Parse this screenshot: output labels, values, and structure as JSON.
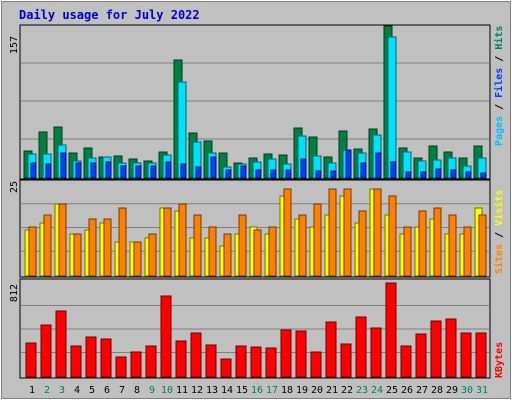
{
  "chart_data": [
    {
      "type": "bar",
      "title": "Daily usage for July 2022",
      "panel": "hits",
      "categories": [
        "1",
        "2",
        "3",
        "4",
        "5",
        "6",
        "7",
        "8",
        "9",
        "10",
        "11",
        "12",
        "13",
        "14",
        "15",
        "16",
        "17",
        "18",
        "19",
        "20",
        "21",
        "22",
        "23",
        "24",
        "25",
        "26",
        "27",
        "28",
        "29",
        "30",
        "31"
      ],
      "max_label": "157",
      "ylim": [
        0,
        157
      ],
      "grid": true,
      "legend_location": "right-side",
      "legend": [
        "Pages",
        "Files",
        "Hits"
      ],
      "series": [
        {
          "name": "Hits",
          "color": "#008040",
          "values": [
            28,
            48,
            53,
            26,
            31,
            22,
            23,
            20,
            18,
            27,
            122,
            46,
            38,
            26,
            15,
            21,
            25,
            24,
            52,
            42,
            22,
            49,
            30,
            51,
            157,
            31,
            21,
            33,
            27,
            21,
            33
          ]
        },
        {
          "name": "Files",
          "color": "#00e0ff",
          "values": [
            25,
            25,
            34,
            18,
            21,
            22,
            15,
            15,
            15,
            24,
            99,
            37,
            26,
            11,
            14,
            17,
            20,
            14,
            43,
            23,
            15,
            29,
            26,
            44,
            146,
            27,
            18,
            19,
            21,
            12,
            21
          ]
        },
        {
          "name": "Pages",
          "color": "#0040ff",
          "values": [
            16,
            14,
            26,
            15,
            16,
            17,
            12,
            12,
            12,
            17,
            14,
            11,
            22,
            8,
            12,
            8,
            8,
            8,
            20,
            7,
            7,
            29,
            16,
            26,
            17,
            6,
            6,
            9,
            8,
            6,
            5
          ]
        }
      ]
    },
    {
      "type": "bar",
      "panel": "visits",
      "categories": [
        "1",
        "2",
        "3",
        "4",
        "5",
        "6",
        "7",
        "8",
        "9",
        "10",
        "11",
        "12",
        "13",
        "14",
        "15",
        "16",
        "17",
        "18",
        "19",
        "20",
        "21",
        "22",
        "23",
        "24",
        "25",
        "26",
        "27",
        "28",
        "29",
        "30",
        "31"
      ],
      "max_label": "25",
      "ylim": [
        0,
        25
      ],
      "grid": true,
      "legend": [
        "Sites",
        "Visits"
      ],
      "series": [
        {
          "name": "Visits",
          "color": "#ff8000",
          "values": [
            13,
            16,
            19,
            11,
            15,
            15,
            18,
            9,
            11,
            18,
            19,
            16,
            13,
            11,
            16,
            12,
            13,
            23,
            16,
            19,
            23,
            23,
            17,
            23,
            21,
            13,
            17,
            18,
            16,
            13,
            16
          ]
        },
        {
          "name": "Sites",
          "color": "#ffff00",
          "values": [
            12,
            14,
            19,
            11,
            12,
            14,
            9,
            9,
            10,
            18,
            17,
            10,
            10,
            8,
            11,
            13,
            11,
            21,
            15,
            13,
            16,
            21,
            14,
            23,
            16,
            11,
            13,
            15,
            11,
            11,
            18
          ]
        }
      ]
    },
    {
      "type": "bar",
      "panel": "kbytes",
      "categories": [
        "1",
        "2",
        "3",
        "4",
        "5",
        "6",
        "7",
        "8",
        "9",
        "10",
        "11",
        "12",
        "13",
        "14",
        "15",
        "16",
        "17",
        "18",
        "19",
        "20",
        "21",
        "22",
        "23",
        "24",
        "25",
        "26",
        "27",
        "28",
        "29",
        "30",
        "31"
      ],
      "max_label": "812",
      "ylim": [
        0,
        812
      ],
      "grid": true,
      "legend": [
        "KBytes"
      ],
      "series": [
        {
          "name": "KBytes",
          "color": "#ff0000",
          "values": [
            291,
            448,
            568,
            267,
            345,
            325,
            174,
            218,
            266,
            698,
            315,
            384,
            279,
            155,
            267,
            258,
            247,
            407,
            397,
            219,
            479,
            283,
            515,
            419,
            812,
            271,
            372,
            487,
            498,
            383,
            382
          ]
        }
      ]
    }
  ],
  "x_axis": {
    "labels": [
      "1",
      "2",
      "3",
      "4",
      "5",
      "6",
      "7",
      "8",
      "9",
      "10",
      "11",
      "12",
      "13",
      "14",
      "15",
      "16",
      "17",
      "18",
      "19",
      "20",
      "21",
      "22",
      "23",
      "24",
      "25",
      "26",
      "27",
      "28",
      "29",
      "30",
      "31"
    ],
    "weekend_days": [
      2,
      3,
      9,
      10,
      16,
      17,
      23,
      24,
      30,
      31
    ],
    "weekday_color": "#000000",
    "weekend_color": "#00805c"
  },
  "legend_labels": {
    "pages": "Pages",
    "files": "Files",
    "hits": "Hits",
    "sites": "Sites",
    "visits": "Visits",
    "kbytes": "KBytes",
    "separator": " / "
  }
}
